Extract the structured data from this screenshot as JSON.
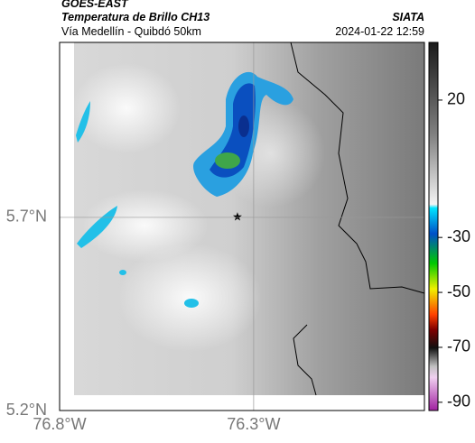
{
  "header": {
    "source": "GOES-EAST",
    "title": "Temperatura de Brillo CH13",
    "subtitle": "Vía Medellín - Quibdó 50km",
    "agency": "SIATA",
    "datetime": "2024-01-22 12:59"
  },
  "map": {
    "xlim": [
      -76.8,
      -75.86
    ],
    "ylim": [
      5.2,
      6.153
    ],
    "xticks": [
      {
        "value": -76.8,
        "label": "76.8°W"
      },
      {
        "value": -76.3,
        "label": "76.3°W"
      }
    ],
    "yticks": [
      {
        "value": 5.2,
        "label": "5.2°N"
      },
      {
        "value": 5.7,
        "label": "5.7°N"
      }
    ]
  },
  "colorbar": {
    "clim": [
      -93,
      41
    ],
    "ticks": [
      20,
      -30,
      -50,
      -70,
      -90
    ]
  }
}
